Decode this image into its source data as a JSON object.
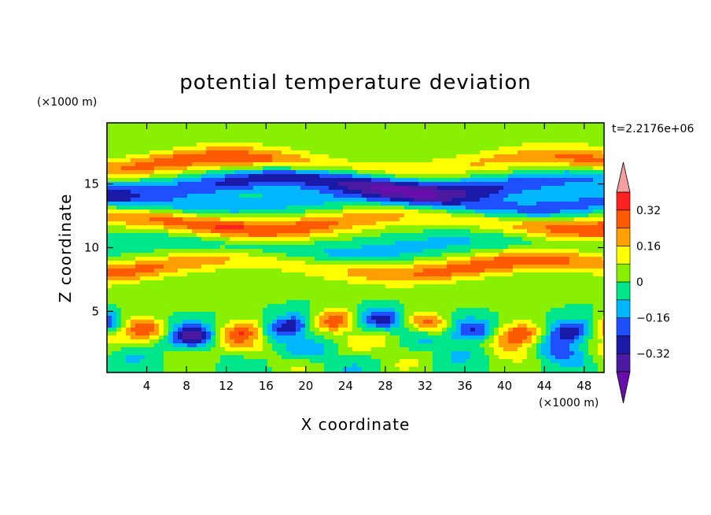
{
  "chart_data": {
    "type": "heatmap",
    "title": "potential temperature deviation",
    "xlabel": "X coordinate",
    "ylabel": "Z coordinate",
    "x_unit": "(×1000 m)",
    "y_unit": "(×1000 m)",
    "time_label": "t=2.2176e+06",
    "xlim": [
      0,
      50
    ],
    "ylim": [
      0.2,
      19.8
    ],
    "x_ticks": [
      4,
      8,
      12,
      16,
      20,
      24,
      28,
      32,
      36,
      40,
      44,
      48
    ],
    "x_tick_labels": [
      "4",
      "8",
      "12",
      "16",
      "20",
      "24",
      "28",
      "32",
      "36",
      "40",
      "44",
      "48"
    ],
    "y_ticks": [
      5,
      10,
      15
    ],
    "y_tick_labels": [
      "5",
      "10",
      "15"
    ],
    "colorbar": {
      "levels": [
        -0.4,
        -0.32,
        -0.24,
        -0.16,
        -0.08,
        0,
        0.08,
        0.16,
        0.24,
        0.32,
        0.4
      ],
      "tick_values": [
        -0.32,
        -0.16,
        0,
        0.16,
        0.32
      ],
      "tick_labels": [
        "−0.32",
        "−0.16",
        "0",
        "0.16",
        "0.32"
      ],
      "colors": [
        "#6a0dad",
        "#4b1aa0",
        "#1a1aa8",
        "#1e50ff",
        "#00b7ff",
        "#00e68a",
        "#88f000",
        "#ffff00",
        "#ffa000",
        "#ff5a00",
        "#ff2020",
        "#f4a0a0"
      ],
      "extend": "both"
    },
    "bands": [
      {
        "z": 1.0,
        "amp": -0.1,
        "wave": 3.5
      },
      {
        "z": 2.5,
        "amp": 0.15,
        "wave": 4.0
      },
      {
        "z": 3.8,
        "amp": -0.3,
        "wave": 3.0
      },
      {
        "z": 6.5,
        "amp": 0.02,
        "wave": 0
      },
      {
        "z": 8.5,
        "amp": 0.3,
        "wave": 0
      },
      {
        "z": 10.0,
        "amp": -0.12,
        "wave": 0
      },
      {
        "z": 12.0,
        "amp": 0.35,
        "wave": 0
      },
      {
        "z": 13.5,
        "amp": -0.22,
        "wave": 0
      },
      {
        "z": 15.0,
        "amp": -0.38,
        "wave": 0
      },
      {
        "z": 16.5,
        "amp": 0.3,
        "wave": 0
      },
      {
        "z": 18.5,
        "amp": 0.05,
        "wave": 0
      }
    ]
  }
}
